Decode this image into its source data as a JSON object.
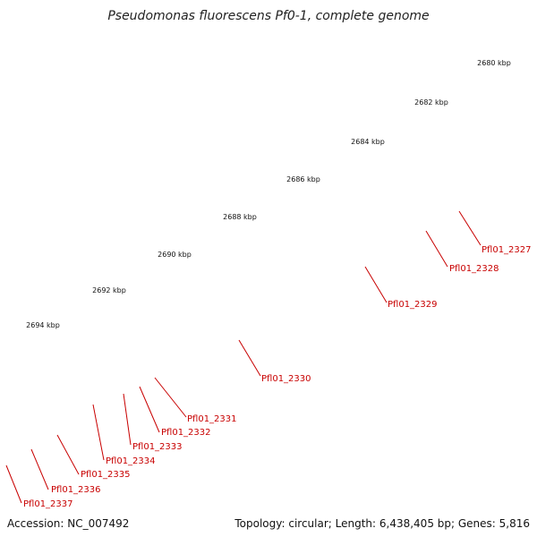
{
  "title": "Pseudomonas fluorescens Pf0-1, complete genome",
  "footer": {
    "accession": "Accession: NC_007492",
    "summary": "Topology: circular; Length: 6,438,405 bp; Genes: 5,816"
  },
  "colors": {
    "backbone": "#8a8a8a",
    "cds": "#ee1111",
    "pseudo_grey": "#777777",
    "olive": "#6b8e23",
    "navy": "#0a1a8c",
    "slate": "#4a4aa0",
    "light_grey": "#cfcfcf",
    "tick": "#2e7d32",
    "label": "#c80000"
  },
  "scale": {
    "unit": "kbp",
    "labels": [
      "2680 kbp",
      "2682 kbp",
      "2684 kbp",
      "2686 kbp",
      "2688 kbp",
      "2690 kbp",
      "2692 kbp",
      "2694 kbp"
    ]
  },
  "genes": [
    {
      "name": "Pfl01_2327",
      "label": "Pfl01_2327"
    },
    {
      "name": "Pfl01_2328",
      "label": "Pfl01_2328"
    },
    {
      "name": "Pfl01_2329",
      "label": "Pfl01_2329"
    },
    {
      "name": "Pfl01_2330",
      "label": "Pfl01_2330"
    },
    {
      "name": "Pfl01_2331",
      "label": "Pfl01_2331"
    },
    {
      "name": "Pfl01_2332",
      "label": "Pfl01_2332"
    },
    {
      "name": "Pfl01_2333",
      "label": "Pfl01_2333"
    },
    {
      "name": "Pfl01_2334",
      "label": "Pfl01_2334"
    },
    {
      "name": "Pfl01_2335",
      "label": "Pfl01_2335"
    },
    {
      "name": "Pfl01_2336",
      "label": "Pfl01_2336"
    },
    {
      "name": "Pfl01_2337",
      "label": "Pfl01_2337"
    }
  ]
}
